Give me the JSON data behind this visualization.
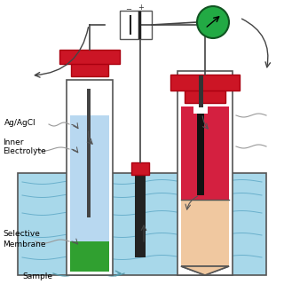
{
  "bg_color": "#ffffff",
  "water_color": "#a8d8ea",
  "tube1_fill_color": "#b8d8f0",
  "tube2_upper_fill": "#d42040",
  "tube2_lower_fill": "#f0c8a0",
  "membrane_color": "#30a030",
  "cap_color": "#cc1525",
  "cap_dark": "#aa0010",
  "wire_color": "#444444",
  "electrode_dark": "#222222",
  "ammeter_fill": "#22aa44",
  "ammeter_edge": "#115522",
  "wavy_color": "#888888",
  "label_color": "#000000",
  "arrow_color": "#333333",
  "labels": {
    "ag_agcl": "Ag/AgCl",
    "inner_top": "Inner",
    "inner_bot": "Electrolyte",
    "sel_top": "Selective",
    "sel_bot": "Membrane",
    "sample": "Sample"
  }
}
